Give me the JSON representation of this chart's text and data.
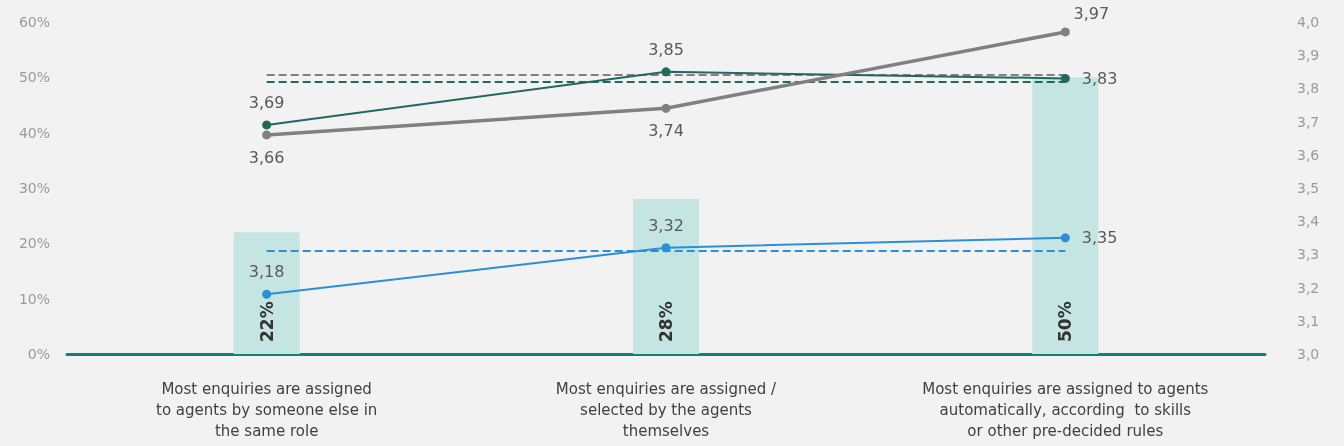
{
  "chart_data": {
    "type": "bar",
    "categories": [
      "Most enquiries are assigned\nto agents by someone else in\nthe same role",
      "Most enquiries are assigned /\nselected by the agents\nthemselves",
      "Most enquiries are assigned to agents\nautomatically, according  to skills\nor other pre-decided rules"
    ],
    "series": [
      {
        "color": "#c5e5e2",
        "values": [
          22,
          28,
          50
        ],
        "value_labels": [
          "22%",
          "28%",
          "50%"
        ]
      },
      {
        "type": "line",
        "axis": "y2",
        "color": "#22695d",
        "values": [
          3.69,
          3.85,
          3.83
        ],
        "value_labels": [
          "3,69",
          "3,85",
          "3,83"
        ]
      },
      {
        "type": "line",
        "axis": "y2",
        "color": "#808080",
        "values": [
          3.66,
          3.74,
          3.97
        ],
        "value_labels": [
          "3,66",
          "3,74",
          "3,97"
        ]
      },
      {
        "type": "line",
        "axis": "y2",
        "color": "#2b8fd8",
        "values": [
          3.18,
          3.32,
          3.35
        ],
        "value_labels": [
          "3,18",
          "3,32",
          "3,35"
        ]
      }
    ],
    "ylim": [
      0,
      60
    ],
    "yticks": [
      {
        "value": 0,
        "label": "0%"
      },
      {
        "value": 10,
        "label": "10%"
      },
      {
        "value": 20,
        "label": "20%"
      },
      {
        "value": 30,
        "label": "30%"
      },
      {
        "value": 40,
        "label": "40%"
      },
      {
        "value": 50,
        "label": "50%"
      },
      {
        "value": 60,
        "label": "60%"
      }
    ],
    "y2lim": [
      3,
      4
    ],
    "y2ticks": [
      {
        "value": 3,
        "label": "3,0"
      },
      {
        "value": 3.1,
        "label": "3,1"
      },
      {
        "value": 3.2,
        "label": "3,2"
      },
      {
        "value": 3.3,
        "label": "3,3"
      },
      {
        "value": 3.4,
        "label": "3,4"
      },
      {
        "value": 3.5,
        "label": "3,5"
      },
      {
        "value": 3.6,
        "label": "3,6"
      },
      {
        "value": 3.7,
        "label": "3,7"
      },
      {
        "value": 3.8,
        "label": "3,8"
      },
      {
        "value": 3.9,
        "label": "3,9"
      },
      {
        "value": 4,
        "label": "4,0"
      }
    ],
    "ref_lines": [
      {
        "axis": "y2",
        "value": 3.84,
        "color": "#808080",
        "line_style": "dashed"
      },
      {
        "axis": "y2",
        "value": 3.82,
        "color": "#22695d",
        "line_style": "dashed"
      },
      {
        "axis": "y2",
        "value": 3.31,
        "color": "#2b8fd8",
        "line_style": "dashed"
      }
    ],
    "marker": "circle",
    "line_style": "solid",
    "grid": false
  }
}
